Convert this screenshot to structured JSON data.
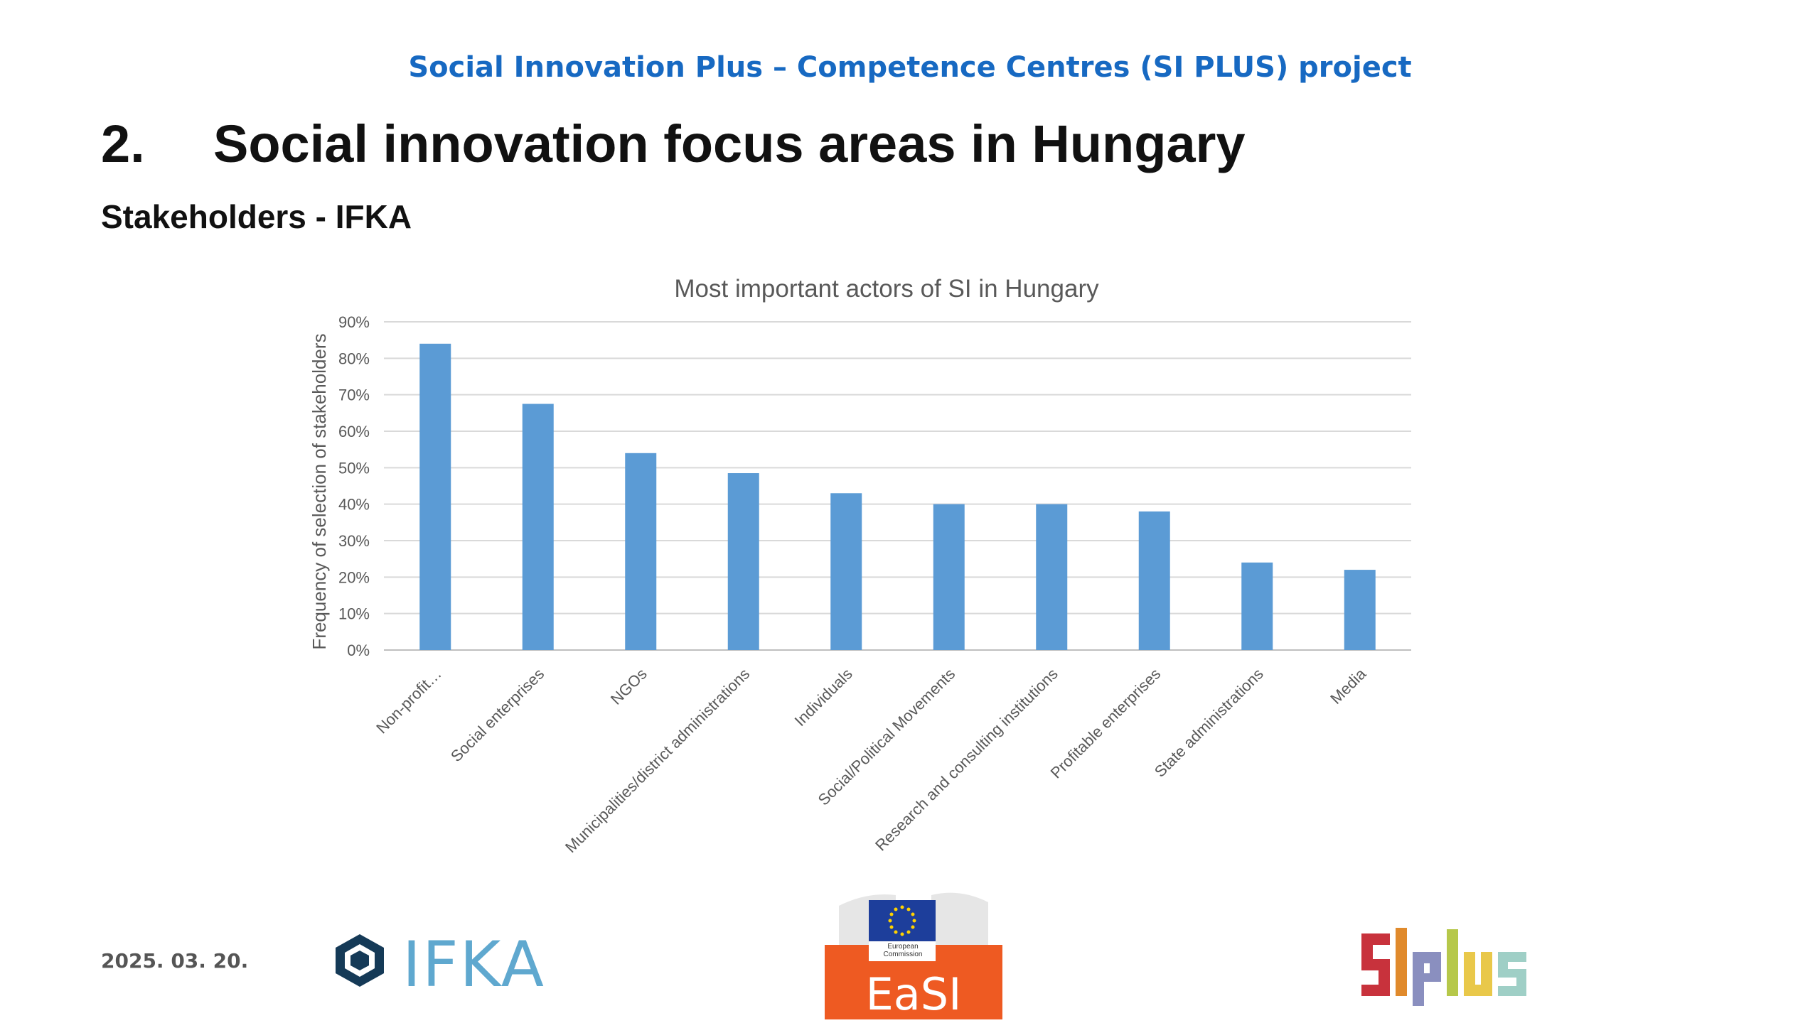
{
  "header": {
    "project_title": "Social Innovation Plus – Competence Centres (SI PLUS) project"
  },
  "slide": {
    "number": "2.",
    "heading": "Social innovation focus areas in Hungary",
    "subheading": "Stakeholders - IFKA"
  },
  "chart_data": {
    "type": "bar",
    "title": "Most important actors of SI in Hungary",
    "xlabel": "",
    "ylabel": "Frequency of selection of stakeholders",
    "ylim": [
      0,
      90
    ],
    "yticks": [
      "0%",
      "10%",
      "20%",
      "30%",
      "40%",
      "50%",
      "60%",
      "70%",
      "80%",
      "90%"
    ],
    "grid": true,
    "legend": "none",
    "bar_color": "#5b9bd5",
    "categories": [
      "Non-profit…",
      "Social enterprises",
      "NGOs",
      "Municipalities/district administrations",
      "Individuals",
      "Social/Political Movements",
      "Research and consulting institutions",
      "Profitable enterprises",
      "State administrations",
      "Media"
    ],
    "values": [
      84,
      67.5,
      54,
      48.5,
      43,
      40,
      40,
      38,
      24,
      22
    ]
  },
  "footer": {
    "date": "2025. 03. 20.",
    "logo_ifka": "IFKA",
    "logo_easi": "EaSI",
    "logo_easi_caption": "European Commission",
    "logo_siplus": "SI plus"
  },
  "colors": {
    "header_blue": "#1769c2",
    "easi_orange": "#ee5a22",
    "ifka_blue": "#5fa8cf",
    "ifka_dark": "#153a57"
  }
}
